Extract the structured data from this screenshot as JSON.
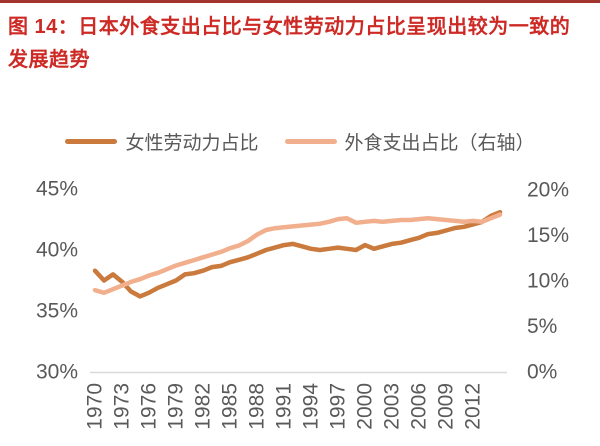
{
  "page": {
    "title": "图 14：日本外食支出占比与女性劳动力占比呈现出较为一致的发展趋势",
    "title_color": "#CD2A25",
    "top_rule_color": "#A2342F"
  },
  "legend": {
    "items": [
      {
        "label": "女性劳动力占比",
        "color": "#C97A3C"
      },
      {
        "label": "外食支出占比（右轴）",
        "color": "#F1AF8D"
      }
    ]
  },
  "colors": {
    "axis_text": "#595959",
    "axis_line": "#D9D9D9"
  },
  "chart_data": {
    "type": "line",
    "title": "",
    "xlabel": "",
    "ylabel_left": "女性劳动力占比",
    "ylabel_right": "外食支出占比",
    "grid": false,
    "legend_position": "top",
    "x": [
      1970,
      1971,
      1972,
      1973,
      1974,
      1975,
      1976,
      1977,
      1978,
      1979,
      1980,
      1981,
      1982,
      1983,
      1984,
      1985,
      1986,
      1987,
      1988,
      1989,
      1990,
      1991,
      1992,
      1993,
      1994,
      1995,
      1996,
      1997,
      1998,
      1999,
      2000,
      2001,
      2002,
      2003,
      2004,
      2005,
      2006,
      2007,
      2008,
      2009,
      2010,
      2011,
      2012,
      2013,
      2014,
      2015
    ],
    "x_ticks": [
      "1970",
      "1973",
      "1976",
      "1979",
      "1982",
      "1985",
      "1988",
      "1991",
      "1994",
      "1997",
      "2000",
      "2003",
      "2006",
      "2009",
      "2012"
    ],
    "left_axis": {
      "ticks": [
        "45%",
        "40%",
        "35%",
        "30%"
      ],
      "tick_values": [
        45,
        40,
        35,
        30
      ],
      "min": 30,
      "max": 45
    },
    "right_axis": {
      "ticks": [
        "20%",
        "15%",
        "10%",
        "5%",
        "0%"
      ],
      "tick_values": [
        20,
        15,
        10,
        5,
        0
      ],
      "min": 0,
      "max": 20
    },
    "series": [
      {
        "name": "女性劳动力占比",
        "axis": "left",
        "color": "#C97A3C",
        "values": [
          38.3,
          37.5,
          38.0,
          37.4,
          36.6,
          36.2,
          36.5,
          36.9,
          37.2,
          37.5,
          38.0,
          38.1,
          38.3,
          38.6,
          38.7,
          39.0,
          39.2,
          39.4,
          39.7,
          40.0,
          40.2,
          40.4,
          40.5,
          40.3,
          40.1,
          40.0,
          40.1,
          40.2,
          40.1,
          40.0,
          40.4,
          40.1,
          40.3,
          40.5,
          40.6,
          40.8,
          41.0,
          41.3,
          41.4,
          41.6,
          41.8,
          41.9,
          42.1,
          42.3,
          42.8,
          43.1
        ]
      },
      {
        "name": "外食支出占比（右轴）",
        "axis": "right",
        "color": "#F1AF8D",
        "values": [
          9.0,
          8.7,
          9.1,
          9.5,
          9.9,
          10.2,
          10.6,
          10.9,
          11.3,
          11.7,
          12.0,
          12.3,
          12.6,
          12.9,
          13.2,
          13.6,
          13.9,
          14.4,
          15.1,
          15.6,
          15.8,
          15.9,
          16.0,
          16.1,
          16.2,
          16.3,
          16.5,
          16.8,
          16.9,
          16.4,
          16.5,
          16.6,
          16.5,
          16.6,
          16.7,
          16.7,
          16.8,
          16.9,
          16.8,
          16.7,
          16.6,
          16.5,
          16.6,
          16.5,
          16.9,
          17.3
        ]
      }
    ]
  }
}
